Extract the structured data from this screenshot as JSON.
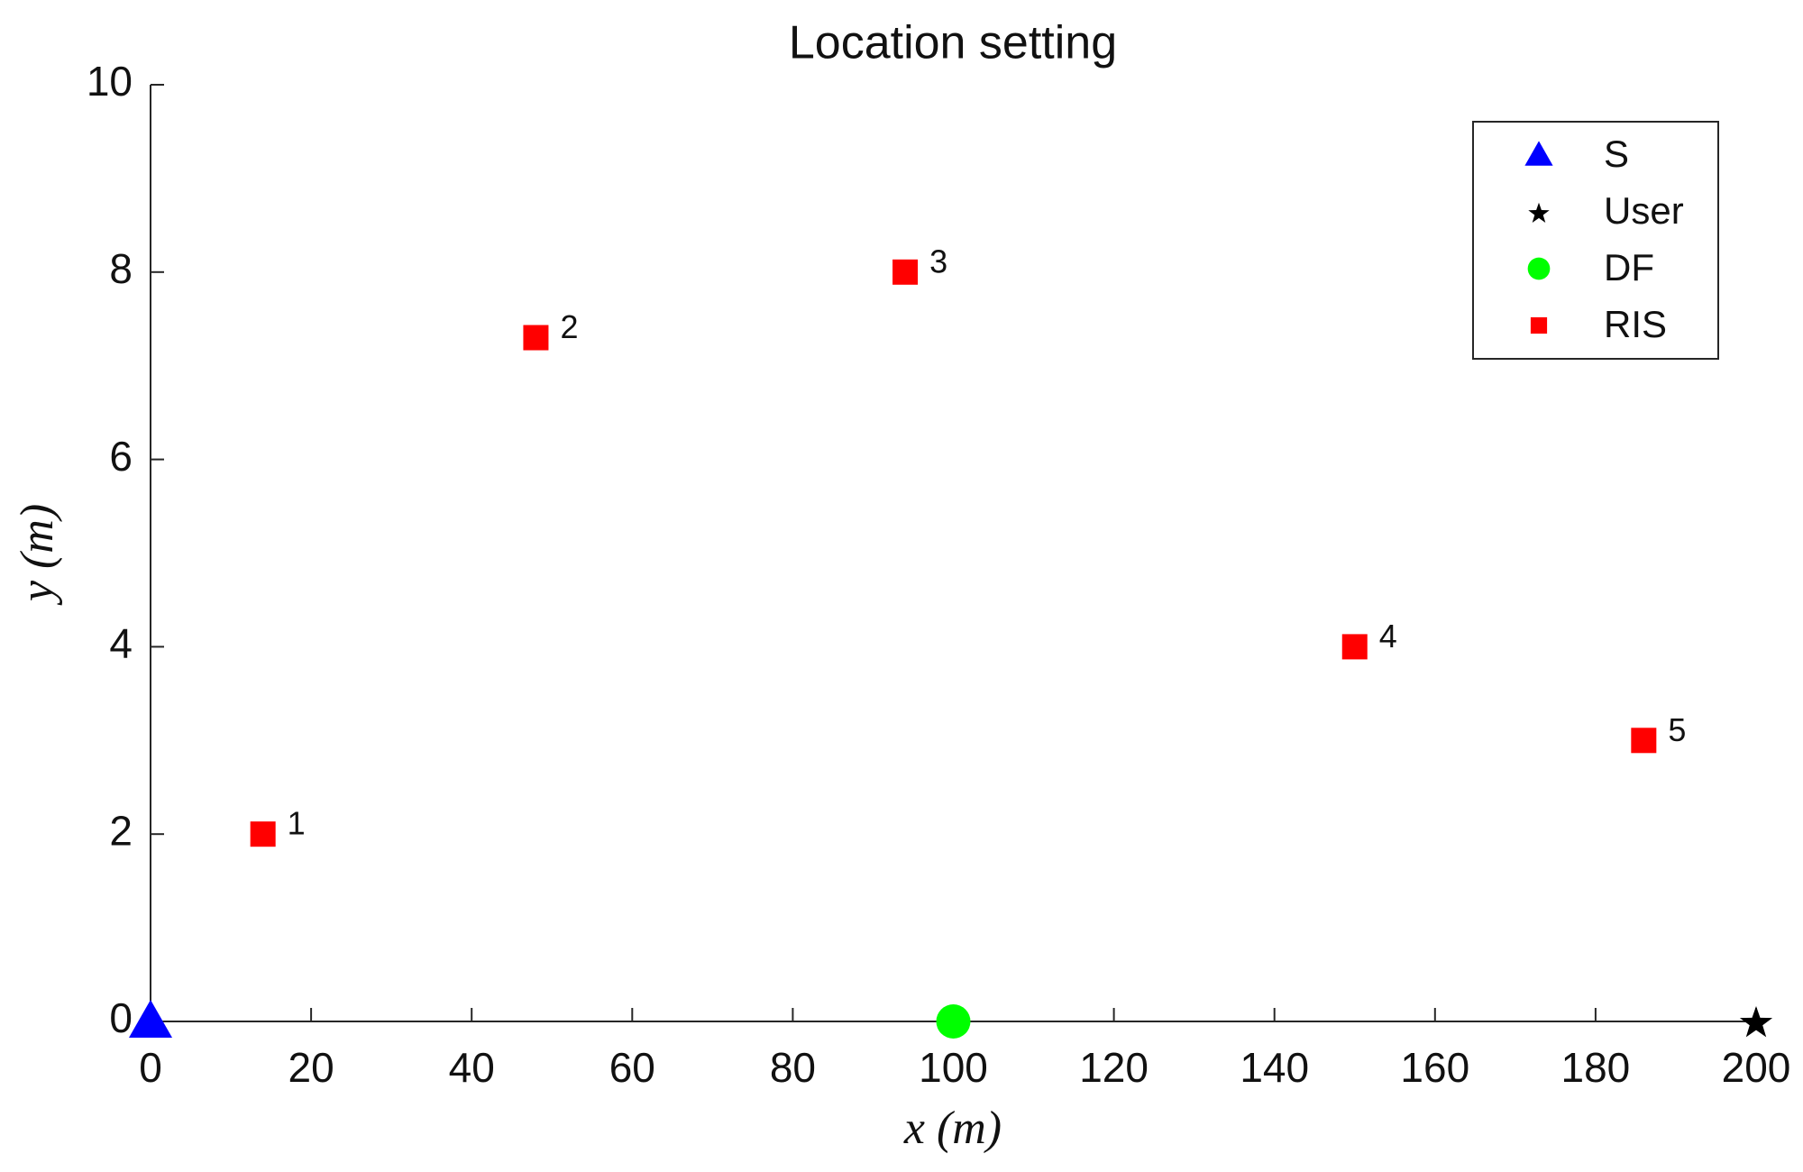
{
  "chart_data": {
    "type": "scatter",
    "title": "Location setting",
    "xlabel": "x (m)",
    "ylabel": "y (m)",
    "xlim": [
      0,
      200
    ],
    "ylim": [
      0,
      10
    ],
    "xticks": [
      0,
      20,
      40,
      60,
      80,
      100,
      120,
      140,
      160,
      180,
      200
    ],
    "yticks": [
      0,
      2,
      4,
      6,
      8,
      10
    ],
    "legend": "northeast",
    "series": [
      {
        "name": "S",
        "color": "#0000ff",
        "marker": "triangle",
        "x": [
          0
        ],
        "values": [
          0
        ]
      },
      {
        "name": "User",
        "color": "#000000",
        "marker": "star",
        "x": [
          200
        ],
        "values": [
          0
        ]
      },
      {
        "name": "DF",
        "color": "#00ff00",
        "marker": "circle",
        "x": [
          100
        ],
        "values": [
          0
        ]
      },
      {
        "name": "RIS",
        "color": "#ff0000",
        "marker": "square",
        "x": [
          14,
          48,
          94,
          150,
          186
        ],
        "values": [
          2,
          7.3,
          8,
          4,
          3
        ],
        "labels": [
          "1",
          "2",
          "3",
          "4",
          "5"
        ]
      }
    ]
  }
}
